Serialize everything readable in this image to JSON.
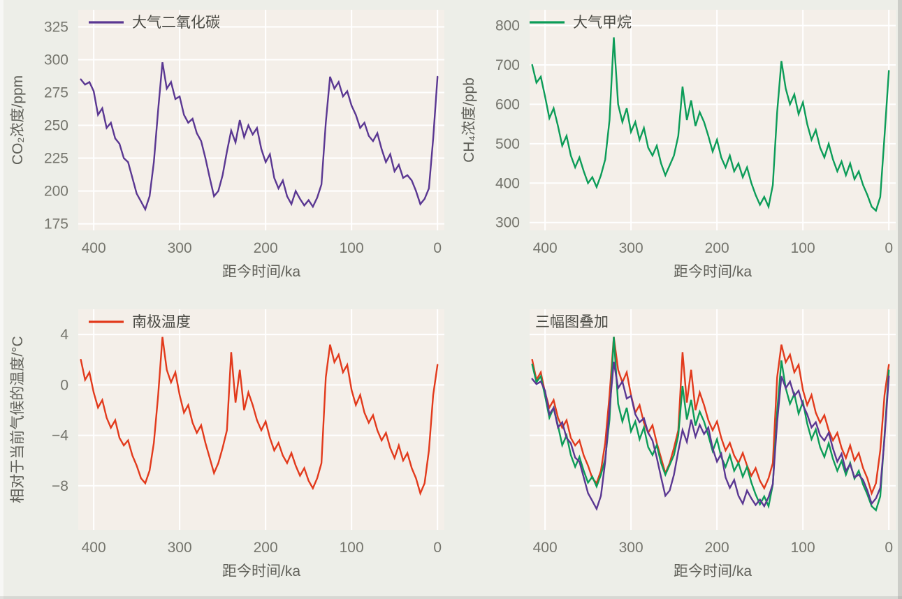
{
  "page": {
    "background": "#edeee8",
    "panel_background": "#f4efe9",
    "grid_color": "#ffffff",
    "tick_color": "#75756d",
    "axis_title_color": "#5f5f58",
    "legend_text_color": "#4a4a44"
  },
  "chart_data": {
    "type": "line",
    "description": "2x2 grid of ice-core climate records over the last ~415 ka",
    "x_label": "距今时间/ka",
    "x_ticks": [
      400,
      300,
      200,
      100,
      0
    ],
    "x_range": [
      418,
      -8
    ],
    "x_axis_reversed": true,
    "x_ka": [
      415,
      410,
      405,
      400,
      395,
      390,
      385,
      380,
      375,
      370,
      365,
      360,
      355,
      350,
      345,
      340,
      335,
      330,
      325,
      320,
      315,
      310,
      305,
      300,
      295,
      290,
      285,
      280,
      275,
      270,
      265,
      260,
      255,
      250,
      245,
      240,
      235,
      230,
      225,
      220,
      215,
      210,
      205,
      200,
      195,
      190,
      185,
      180,
      175,
      170,
      165,
      160,
      155,
      150,
      145,
      140,
      135,
      130,
      125,
      120,
      115,
      110,
      105,
      100,
      95,
      90,
      85,
      80,
      75,
      70,
      65,
      60,
      55,
      50,
      45,
      40,
      35,
      30,
      25,
      20,
      15,
      10,
      5,
      0
    ],
    "series": {
      "co2": {
        "legend": "大气二氧化碳",
        "ylabel": "CO₂浓度/ppm",
        "color": "#5a3792",
        "y_ticks": [
          175,
          200,
          225,
          250,
          275,
          300,
          325
        ],
        "y_range": [
          170,
          338
        ],
        "values": [
          285,
          281,
          283,
          276,
          258,
          263,
          248,
          252,
          240,
          236,
          225,
          222,
          210,
          198,
          192,
          186,
          196,
          222,
          262,
          298,
          278,
          283,
          270,
          272,
          258,
          252,
          255,
          244,
          238,
          225,
          210,
          196,
          200,
          212,
          230,
          246,
          237,
          254,
          241,
          250,
          243,
          248,
          232,
          222,
          228,
          210,
          202,
          208,
          196,
          190,
          200,
          194,
          189,
          193,
          188,
          195,
          205,
          252,
          287,
          278,
          283,
          272,
          276,
          265,
          258,
          248,
          252,
          242,
          238,
          244,
          232,
          222,
          228,
          215,
          220,
          210,
          212,
          208,
          200,
          190,
          194,
          202,
          240,
          287
        ]
      },
      "ch4": {
        "legend": "大气甲烷",
        "ylabel": "CH₄浓度/ppb",
        "color": "#0c9c58",
        "y_ticks": [
          300,
          400,
          500,
          600,
          700,
          800
        ],
        "y_range": [
          280,
          840
        ],
        "values": [
          700,
          655,
          670,
          620,
          565,
          590,
          545,
          495,
          520,
          470,
          440,
          465,
          430,
          400,
          415,
          390,
          420,
          460,
          560,
          770,
          600,
          555,
          590,
          530,
          555,
          510,
          540,
          490,
          470,
          495,
          450,
          420,
          445,
          470,
          520,
          645,
          560,
          610,
          545,
          580,
          555,
          520,
          480,
          510,
          465,
          440,
          470,
          430,
          450,
          415,
          440,
          400,
          370,
          345,
          365,
          340,
          395,
          580,
          710,
          640,
          600,
          625,
          575,
          605,
          550,
          510,
          535,
          490,
          465,
          500,
          460,
          430,
          455,
          420,
          450,
          410,
          430,
          395,
          370,
          340,
          330,
          365,
          520,
          685
        ]
      },
      "temp": {
        "legend": "南极温度",
        "ylabel": "相对于当前气候的温度/°C",
        "color": "#e23a1c",
        "y_ticks": [
          -8,
          -4,
          0,
          4
        ],
        "y_range": [
          -11.5,
          6
        ],
        "values": [
          2.0,
          0.4,
          1.0,
          -0.6,
          -1.8,
          -1.2,
          -2.6,
          -3.4,
          -2.8,
          -4.2,
          -4.8,
          -4.4,
          -5.6,
          -6.4,
          -7.4,
          -7.8,
          -6.8,
          -4.6,
          -0.8,
          3.8,
          1.2,
          0.2,
          1.0,
          -0.8,
          -2.2,
          -1.6,
          -3.0,
          -3.8,
          -3.2,
          -4.6,
          -5.8,
          -7.0,
          -6.2,
          -5.0,
          -3.6,
          2.6,
          -1.4,
          1.2,
          -2.0,
          -0.6,
          -1.6,
          -2.8,
          -3.6,
          -2.9,
          -4.2,
          -5.2,
          -4.6,
          -5.6,
          -6.2,
          -5.4,
          -6.4,
          -7.2,
          -6.6,
          -7.6,
          -8.2,
          -7.4,
          -6.2,
          0.6,
          3.2,
          1.8,
          2.4,
          1.0,
          1.6,
          -0.4,
          -1.6,
          -0.8,
          -2.2,
          -3.0,
          -2.4,
          -3.6,
          -4.4,
          -3.8,
          -5.0,
          -5.8,
          -4.8,
          -6.0,
          -5.4,
          -6.6,
          -7.4,
          -8.6,
          -7.8,
          -5.2,
          -0.8,
          1.6
        ]
      }
    },
    "panels": [
      {
        "key": "co2",
        "series": [
          "co2"
        ],
        "legend_type": "line",
        "legend_series": "co2",
        "legend_offset": 15,
        "show_y_labels": true
      },
      {
        "key": "ch4",
        "series": [
          "ch4"
        ],
        "legend_type": "line",
        "legend_series": "ch4",
        "legend_offset": 0,
        "show_y_labels": true
      },
      {
        "key": "temp",
        "series": [
          "temp"
        ],
        "legend_type": "line",
        "legend_series": "temp",
        "legend_offset": 15,
        "show_y_labels": true
      },
      {
        "key": "overlay",
        "title": "三幅图叠加",
        "series": [
          "temp",
          "ch4",
          "co2"
        ],
        "legend_type": "text",
        "legend_offset": 8,
        "show_y_labels": false
      }
    ]
  }
}
